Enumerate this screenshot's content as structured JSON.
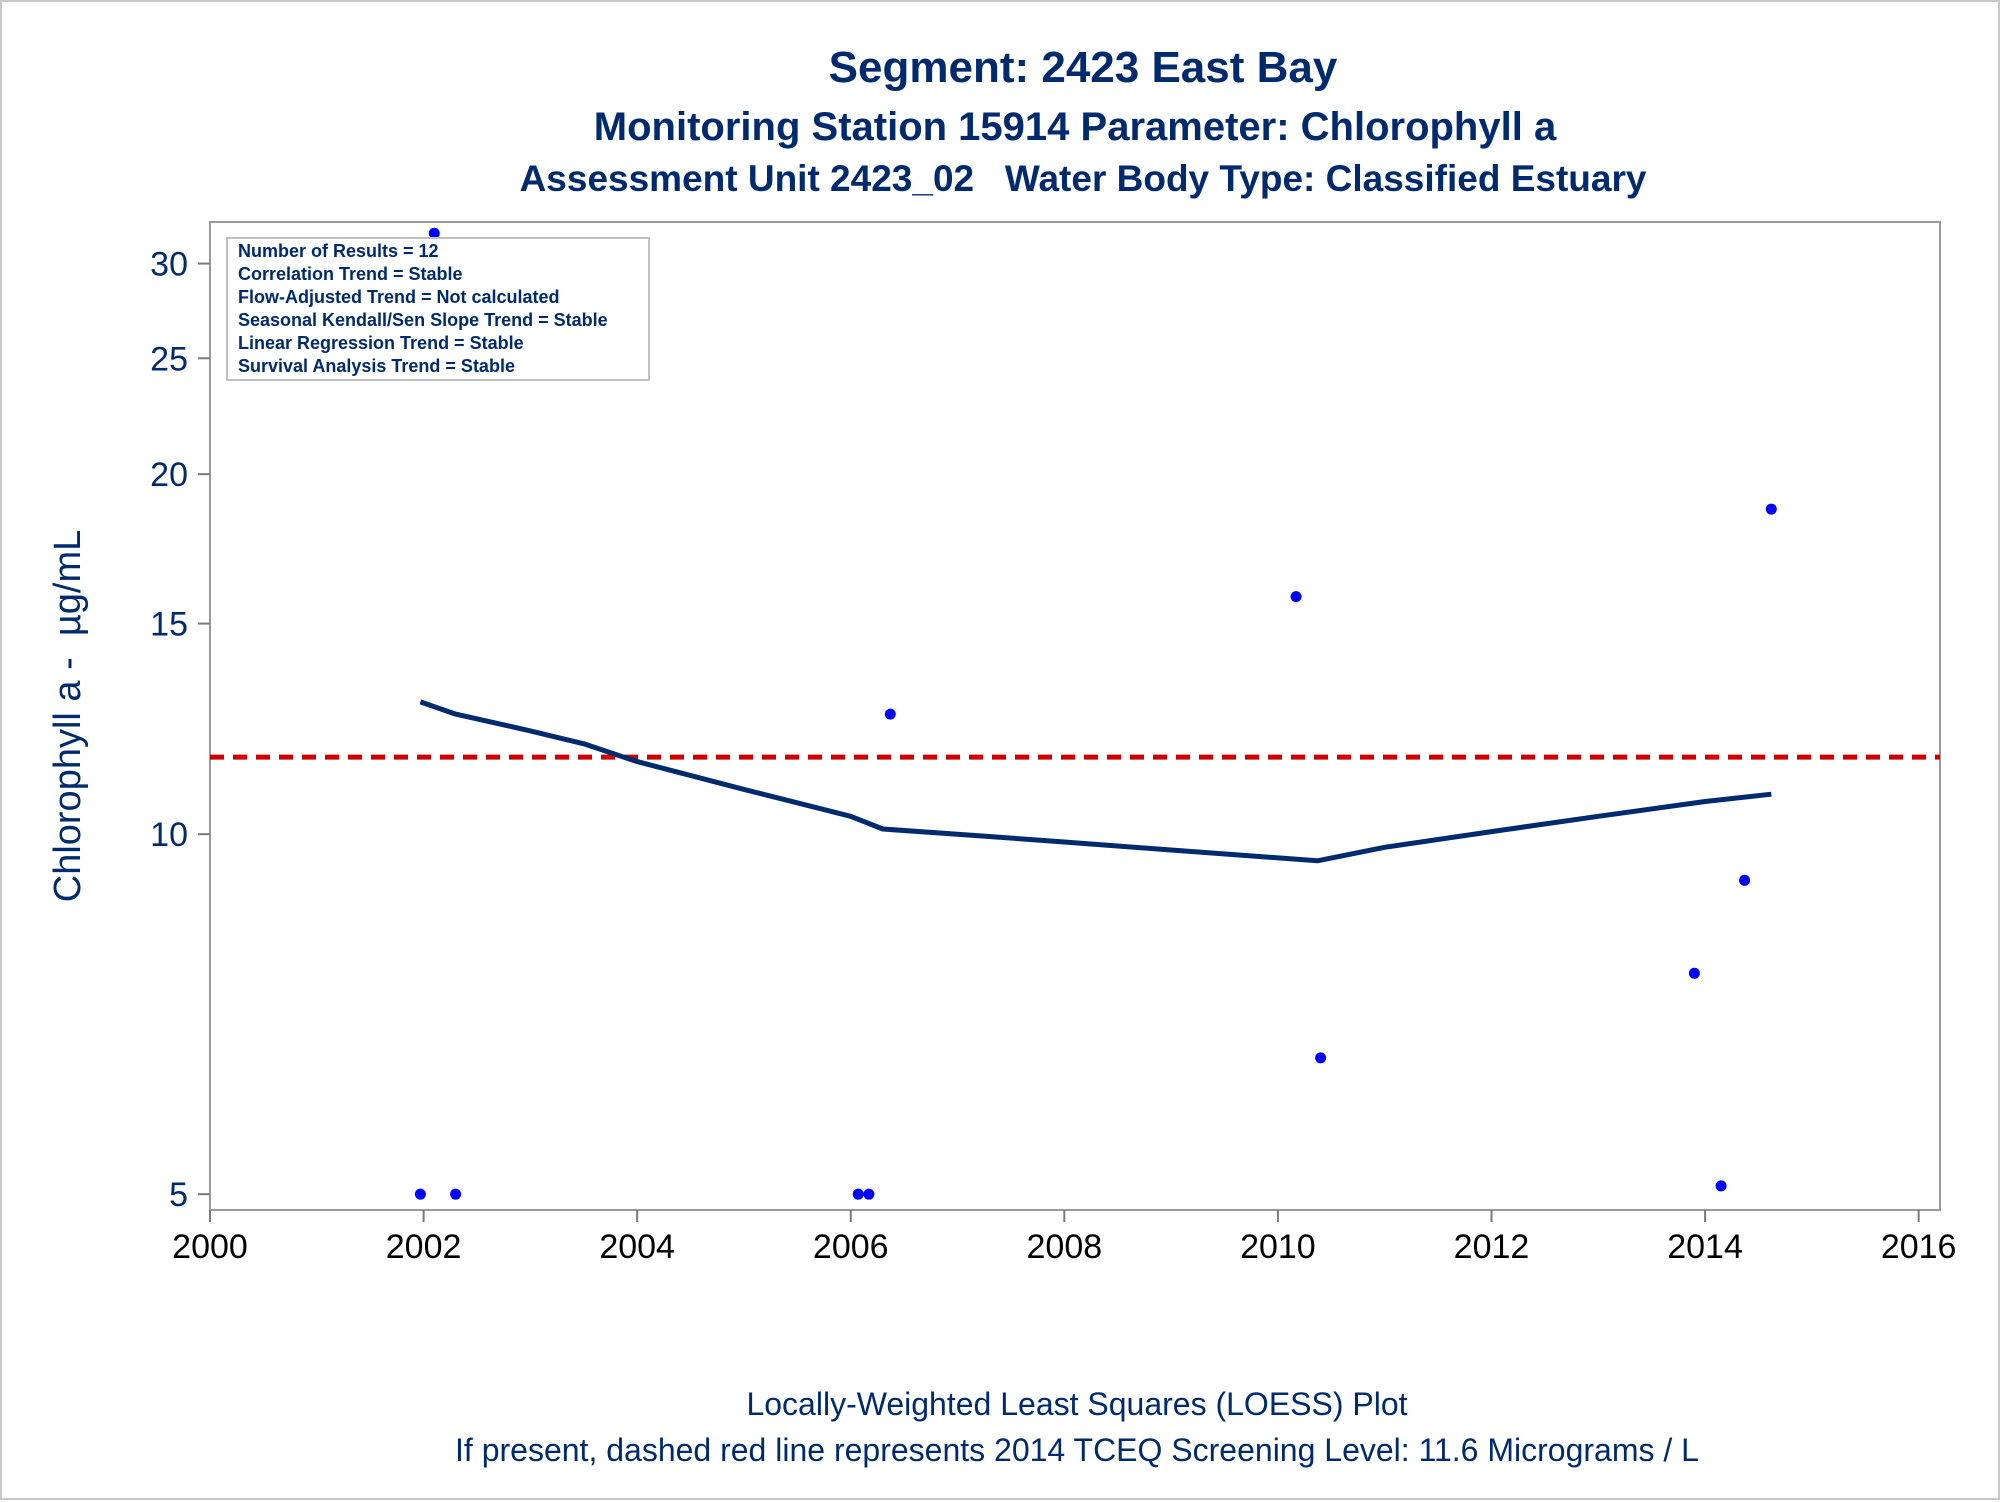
{
  "chart_data": {
    "type": "scatter",
    "title": "Segment: 2423  East Bay",
    "subtitle": "Monitoring Station 15914 Parameter: Chlorophyll a",
    "subtitle2": "Assessment Unit 2423_02   Water Body Type: Classified Estuary",
    "xlabel": "",
    "ylabel": "Chlorophyll a -  µg/mL",
    "y_scale": "log",
    "xlim": [
      2000,
      2016.2
    ],
    "ylim": [
      4.85,
      32.5
    ],
    "x_ticks": [
      "2000",
      "2002",
      "2004",
      "2006",
      "2008",
      "2010",
      "2012",
      "2014",
      "2016"
    ],
    "y_ticks": [
      "5",
      "10",
      "15",
      "20",
      "25",
      "30"
    ],
    "grid": false,
    "points": [
      {
        "x": 2001.97,
        "y": 5.0
      },
      {
        "x": 2002.1,
        "y": 31.8
      },
      {
        "x": 2002.3,
        "y": 5.0
      },
      {
        "x": 2006.07,
        "y": 5.0
      },
      {
        "x": 2006.17,
        "y": 5.0
      },
      {
        "x": 2006.37,
        "y": 12.6
      },
      {
        "x": 2010.17,
        "y": 15.8
      },
      {
        "x": 2010.4,
        "y": 6.5
      },
      {
        "x": 2013.9,
        "y": 7.65
      },
      {
        "x": 2014.15,
        "y": 5.08
      },
      {
        "x": 2014.37,
        "y": 9.15
      },
      {
        "x": 2014.62,
        "y": 18.7
      }
    ],
    "loess_line": [
      {
        "x": 2001.97,
        "y": 12.9
      },
      {
        "x": 2002.3,
        "y": 12.6
      },
      {
        "x": 2003,
        "y": 12.2
      },
      {
        "x": 2003.5,
        "y": 11.9
      },
      {
        "x": 2004,
        "y": 11.5
      },
      {
        "x": 2005,
        "y": 10.9
      },
      {
        "x": 2006,
        "y": 10.35
      },
      {
        "x": 2006.3,
        "y": 10.1
      },
      {
        "x": 2007,
        "y": 10.0
      },
      {
        "x": 2008,
        "y": 9.85
      },
      {
        "x": 2009,
        "y": 9.7
      },
      {
        "x": 2010.37,
        "y": 9.5
      },
      {
        "x": 2011,
        "y": 9.75
      },
      {
        "x": 2012,
        "y": 10.05
      },
      {
        "x": 2013,
        "y": 10.35
      },
      {
        "x": 2014,
        "y": 10.65
      },
      {
        "x": 2014.62,
        "y": 10.8
      }
    ],
    "screening_level": 11.6,
    "colors": {
      "points": "#0000ff",
      "loess": "#002a6e",
      "screening": "#cc0000",
      "text": "#002a6e"
    },
    "stats_box": [
      "Number of Results = 12",
      "Correlation Trend = Stable",
      "Flow-Adjusted Trend = Not calculated",
      "Seasonal Kendall/Sen Slope Trend = Stable",
      "Linear Regression Trend = Stable",
      "Survival Analysis Trend = Stable"
    ],
    "footnotes": [
      "Locally-Weighted Least Squares (LOESS) Plot",
      "If present, dashed red line represents 2014 TCEQ Screening Level: 11.6 Micrograms / L"
    ]
  }
}
